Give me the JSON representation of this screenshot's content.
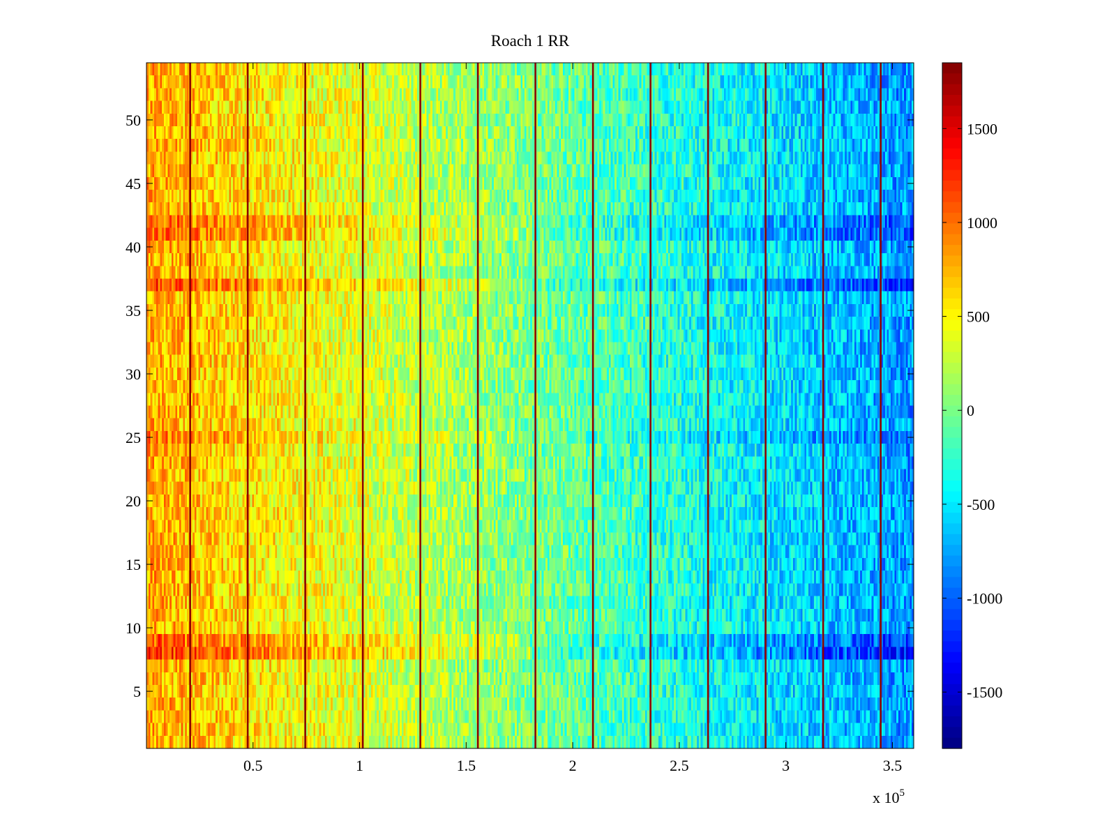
{
  "chart_data": {
    "type": "heatmap",
    "title": "Roach 1 RR",
    "xlabel": "",
    "ylabel": "",
    "x_exponent_label": "x 10",
    "x_exponent_power": "5",
    "xlim": [
      0.0,
      3.6
    ],
    "ylim": [
      0.5,
      54.5
    ],
    "rows": 54,
    "xticks": [
      0.5,
      1,
      1.5,
      2,
      2.5,
      3,
      3.5
    ],
    "xtick_labels": [
      "0.5",
      "1",
      "1.5",
      "2",
      "2.5",
      "3",
      "3.5"
    ],
    "yticks": [
      5,
      10,
      15,
      20,
      25,
      30,
      35,
      40,
      45,
      50
    ],
    "ytick_labels": [
      "5",
      "10",
      "15",
      "20",
      "25",
      "30",
      "35",
      "40",
      "45",
      "50"
    ],
    "colormap": "jet",
    "clim": [
      -1800,
      1850
    ],
    "colorbar_ticks": [
      1500,
      1000,
      500,
      0,
      -500,
      -1000,
      -1500
    ],
    "colorbar_tick_labels": [
      "1500",
      "1000",
      "500",
      "0",
      "-500",
      "-1000",
      "-1500"
    ],
    "trend_description": "Values decrease roughly linearly from about 800 at the left edge to about -800 at the right edge, with noise; rows near 8, 37 and 41 are more extreme; thin dark-red vertical stripes appear at regular intervals.",
    "trend_start": 800,
    "trend_end": -800,
    "noise_amplitude": 350,
    "row_offsets": [
      {
        "row": 8,
        "offset": 350
      },
      {
        "row": 9,
        "offset": 250
      },
      {
        "row": 37,
        "offset": 300
      },
      {
        "row": 41,
        "offset": 220
      },
      {
        "row": 42,
        "offset": 200
      },
      {
        "row": 25,
        "offset": 150
      }
    ],
    "stripe_x": [
      0.205,
      0.475,
      0.745,
      1.015,
      1.285,
      1.555,
      1.825,
      2.095,
      2.365,
      2.635,
      2.905,
      3.175,
      3.445
    ],
    "stripe_value": 1800
  }
}
